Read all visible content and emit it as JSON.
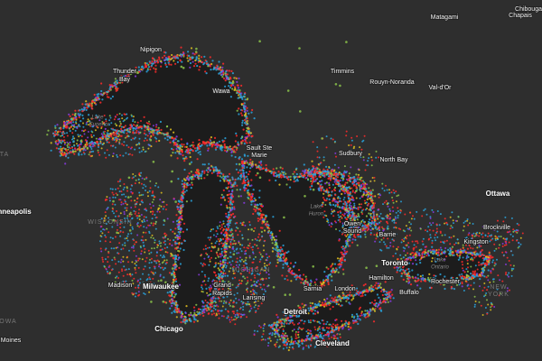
{
  "map": {
    "labels": [
      {
        "text": "Chibouga"
      },
      {
        "text": "Chapais"
      },
      {
        "text": "Matagami"
      },
      {
        "text": "Nipigon"
      },
      {
        "text": "Thunder"
      },
      {
        "text": "Bay"
      },
      {
        "text": "Wawa"
      },
      {
        "text": "Timmins"
      },
      {
        "text": "Rouyn-Noranda"
      },
      {
        "text": "Val-d'Or"
      },
      {
        "text": "Lake"
      },
      {
        "text": "Superior"
      },
      {
        "text": "Sault Ste"
      },
      {
        "text": "Marie"
      },
      {
        "text": "Sudbury"
      },
      {
        "text": "North Bay"
      },
      {
        "text": "Ottawa"
      },
      {
        "text": "Brockville"
      },
      {
        "text": "Kingston"
      },
      {
        "text": "nneapolis"
      },
      {
        "text": "WISCONSIN"
      },
      {
        "text": "Lake"
      },
      {
        "text": "Huron"
      },
      {
        "text": "Owen"
      },
      {
        "text": "Sound"
      },
      {
        "text": "Barrie"
      },
      {
        "text": "Toronto"
      },
      {
        "text": "Lake"
      },
      {
        "text": "Ontario"
      },
      {
        "text": "Madison"
      },
      {
        "text": "Milwaukee"
      },
      {
        "text": "MICHIGAN"
      },
      {
        "text": "Grand"
      },
      {
        "text": "Rapids"
      },
      {
        "text": "Lansing"
      },
      {
        "text": "Sarnia"
      },
      {
        "text": "London"
      },
      {
        "text": "Hamilton"
      },
      {
        "text": "Buffalo"
      },
      {
        "text": "Rochester"
      },
      {
        "text": "NEW"
      },
      {
        "text": "YORK"
      },
      {
        "text": "Detroit"
      },
      {
        "text": "Chicago"
      },
      {
        "text": "Cleveland"
      },
      {
        "text": "OWA"
      },
      {
        "text": "Moines"
      },
      {
        "text": "TA"
      }
    ]
  }
}
